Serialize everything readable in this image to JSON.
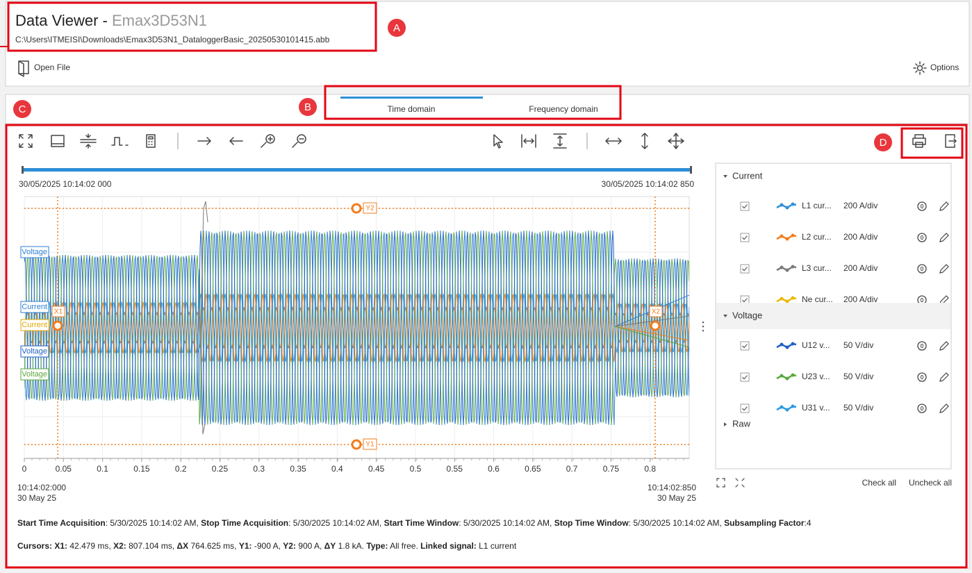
{
  "header": {
    "title": "Data Viewer - ",
    "device": "Emax3D53N1",
    "path": "C:\\Users\\ITMEISI\\Downloads\\Emax3D53N1_DataloggerBasic_20250530101415.abb",
    "open_file": "Open File",
    "options": "Options"
  },
  "tabs": [
    "Time domain",
    "Frequency domain"
  ],
  "callouts": [
    "A",
    "B",
    "C",
    "D"
  ],
  "timeline": {
    "start": "30/05/2025 10:14:02 000",
    "end": "30/05/2025 10:14:02 850"
  },
  "plot": {
    "xlim": [
      0,
      0.85
    ],
    "xticks": [
      0,
      0.05,
      0.1,
      0.15,
      0.2,
      0.25,
      0.3,
      0.35,
      0.4,
      0.45,
      0.5,
      0.55,
      0.6,
      0.65,
      0.7,
      0.75,
      0.8
    ],
    "start_time": "10:14:02:000",
    "start_date": "30 May 25",
    "end_time": "10:14:02:850",
    "end_date": "30 May 25",
    "cursors": [
      "X1",
      "X2",
      "Y1",
      "Y2"
    ],
    "signal_tags": [
      "Voltage",
      "Current",
      "Current",
      "Voltage",
      "Voltage"
    ]
  },
  "signals": [
    {
      "group": "Current",
      "items": [
        {
          "name": "L1 cur...",
          "scale": "200 A/div",
          "color": "#2f8fd8"
        },
        {
          "name": "L2 cur...",
          "scale": "200 A/div",
          "color": "#f07d1e"
        },
        {
          "name": "L3 cur...",
          "scale": "200 A/div",
          "color": "#7a7a7a"
        },
        {
          "name": "Ne cur...",
          "scale": "200 A/div",
          "color": "#e8b800"
        }
      ]
    },
    {
      "group": "Voltage",
      "items": [
        {
          "name": "U12 v...",
          "scale": "50 V/div",
          "color": "#1f5fc4"
        },
        {
          "name": "U23 v...",
          "scale": "50 V/div",
          "color": "#58a83a"
        },
        {
          "name": "U31 v...",
          "scale": "50 V/div",
          "color": "#2b9ae0"
        }
      ]
    },
    {
      "group": "Raw",
      "items": []
    }
  ],
  "signal_actions": [
    "Check all",
    "Uncheck all"
  ],
  "info": {
    "acquisition": [
      {
        "label": "Start Time Acquisition",
        "text": ": 5/30/2025 10:14:02 AM, "
      },
      {
        "label": "Stop Time Acquisition",
        "text": ": 5/30/2025 10:14:02 AM, "
      },
      {
        "label": "Start Time Window",
        "text": ": 5/30/2025 10:14:02 AM, "
      },
      {
        "label": "Stop Time Window",
        "text": ": 5/30/2025 10:14:02 AM, "
      },
      {
        "label": "Subsampling Factor",
        "text": ":4"
      }
    ],
    "cursors": [
      {
        "label": "Cursors:",
        "text": " "
      },
      {
        "label": "X1:",
        "text": " 42.479 ms, "
      },
      {
        "label": "X2:",
        "text": " 807.104 ms, "
      },
      {
        "label": "ΔX",
        "text": " 764.625 ms, "
      },
      {
        "label": "Y1:",
        "text": " -900 A, "
      },
      {
        "label": "Y2:",
        "text": " 900 A, "
      },
      {
        "label": "ΔY",
        "text": " 1.8 kA. "
      },
      {
        "label": "Type:",
        "text": " All free. "
      },
      {
        "label": "Linked signal:",
        "text": " L1 current"
      }
    ]
  }
}
